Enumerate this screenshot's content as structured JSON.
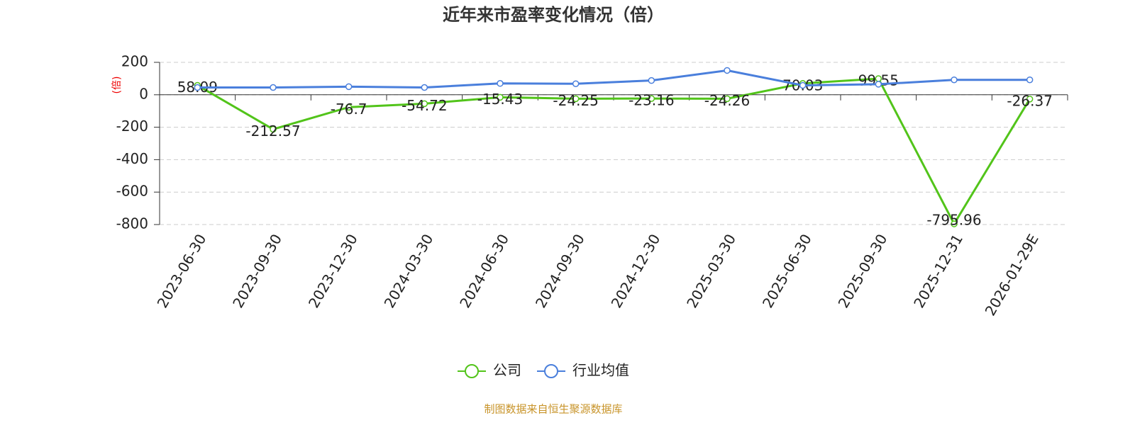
{
  "chart_data": {
    "type": "line",
    "title": "近年来市盈率变化情况（倍）",
    "y_label": "(倍)",
    "categories": [
      "2023-06-30",
      "2023-09-30",
      "2023-12-30",
      "2024-03-30",
      "2024-06-30",
      "2024-09-30",
      "2024-12-30",
      "2025-03-30",
      "2025-06-30",
      "2025-09-30",
      "2025-12-31",
      "2026-01-29E"
    ],
    "series": [
      {
        "name": "公司",
        "color": "#52c41a",
        "values": [
          58.09,
          -212.57,
          -76.7,
          -54.72,
          -15.43,
          -24.25,
          -23.16,
          -24.26,
          70.03,
          99.55,
          -795.96,
          -26.37
        ],
        "labels": true
      },
      {
        "name": "行业均值",
        "color": "#4a7fdc",
        "values": [
          45,
          45,
          50,
          45,
          70,
          68,
          88,
          150,
          58,
          65,
          92,
          92
        ],
        "labels": false
      }
    ],
    "ylim": [
      -800,
      200
    ],
    "yticks": [
      -800,
      -600,
      -400,
      -200,
      0,
      200
    ],
    "grid": true,
    "source": "制图数据来自恒生聚源数据库"
  }
}
